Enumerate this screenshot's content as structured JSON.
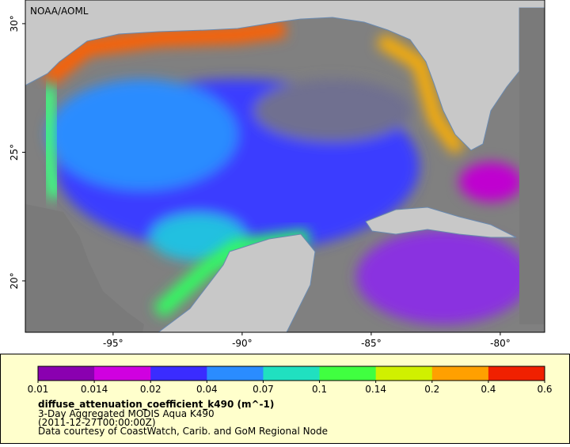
{
  "map": {
    "watermark": "NOAA/AOML",
    "lonlim": [
      -98.4,
      -78.28
    ],
    "latlim": [
      18.0,
      30.92
    ],
    "lat_ticks": [
      {
        "value": 30,
        "label": "30°"
      },
      {
        "value": 25,
        "label": "25°"
      },
      {
        "value": 20,
        "label": "20°"
      }
    ],
    "lon_ticks": [
      {
        "value": -95,
        "label": "-95°"
      },
      {
        "value": -90,
        "label": "-90°"
      },
      {
        "value": -85,
        "label": "-85°"
      },
      {
        "value": -80,
        "label": "-80°"
      }
    ]
  },
  "legend": {
    "colorbar": {
      "ticks": [
        0.01,
        0.014,
        0.02,
        0.04,
        0.07,
        0.1,
        0.14,
        0.2,
        0.4,
        0.6
      ],
      "colors": [
        "#8a00b0",
        "#d000e0",
        "#3a2cff",
        "#2a8cff",
        "#20e0c0",
        "#40ff40",
        "#d0f000",
        "#ffa000",
        "#f02000"
      ]
    },
    "variable": "diffuse_attenuation_coefficient_k490 (m^-1)",
    "product": "3-Day Aggregated MODIS Aqua K490",
    "date": "(2011-12-27T00:00:00Z)",
    "credit": "Data courtesy of CoastWatch, Carib. and GoM Regional Node"
  }
}
